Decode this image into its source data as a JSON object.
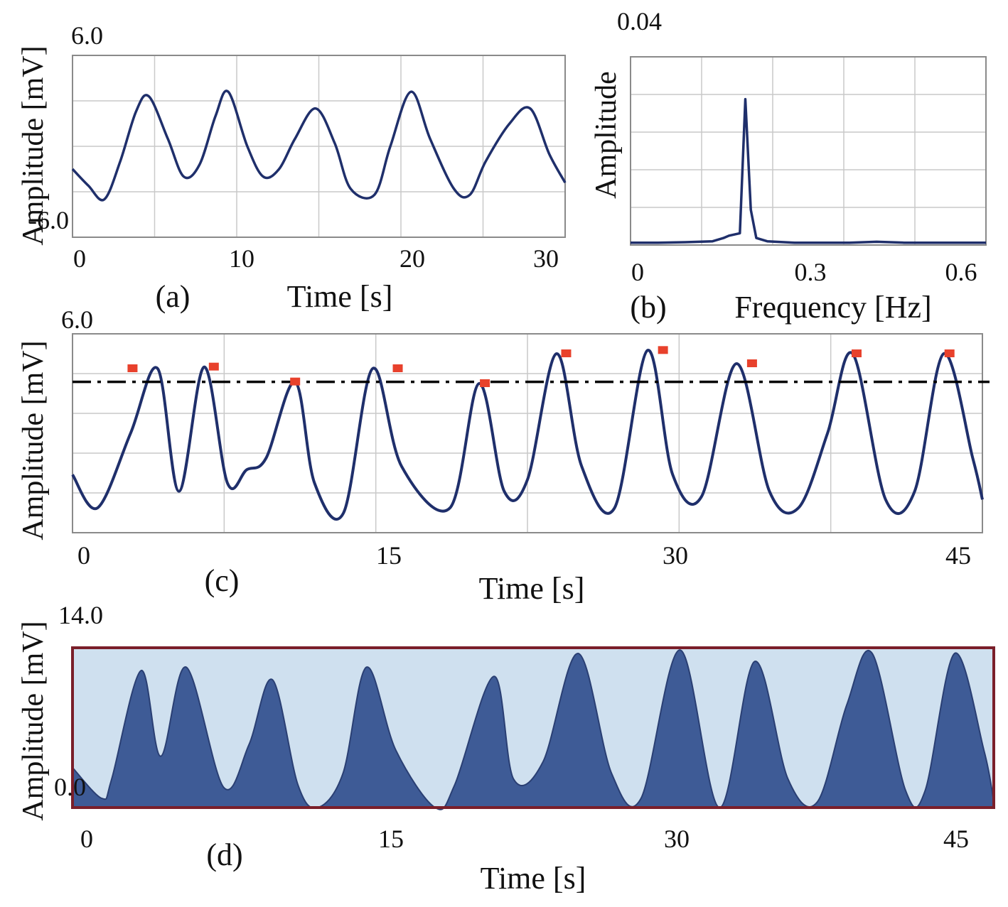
{
  "colors": {
    "signal": "#1f2f6b",
    "marker": "#e8412c",
    "grid": "#c9c9c9",
    "frame": "#8a8a8a",
    "fill": "#3e5b96",
    "fill_bg": "#cfe0ef",
    "box": "#7a1f2a",
    "threshold": "#000000"
  },
  "chart_data": [
    {
      "panel": "(a)",
      "type": "line",
      "xlabel": "Time [s]",
      "ylabel": "Amplitude [mV]",
      "xlim": [
        0,
        31
      ],
      "ylim": [
        -6.0,
        6.0
      ],
      "xticks": [
        "0",
        "10",
        "20",
        "30"
      ],
      "yticks": [
        "6.0",
        "-6.0"
      ],
      "grid": true,
      "x": [
        0,
        1,
        2,
        3,
        4,
        4.8,
        6,
        7,
        8,
        9,
        9.8,
        11,
        12,
        13,
        14,
        15.3,
        16.5,
        17.5,
        19,
        20,
        21.3,
        22.5,
        24,
        25,
        26,
        27.5,
        28.8,
        30,
        31
      ],
      "y": [
        -1.5,
        -2.6,
        -3.5,
        -1.0,
        2.3,
        3.3,
        0.5,
        -2.0,
        -1.2,
        2.0,
        3.6,
        0.0,
        -2.0,
        -1.5,
        0.5,
        2.5,
        0.2,
        -2.8,
        -3.2,
        0.0,
        3.6,
        0.5,
        -2.8,
        -3.2,
        -1.0,
        1.5,
        2.5,
        -0.5,
        -2.4
      ]
    },
    {
      "panel": "(b)",
      "type": "line",
      "xlabel": "Frequency [Hz]",
      "ylabel": "Amplitude",
      "xlim": [
        0,
        0.65
      ],
      "ylim": [
        0,
        0.04
      ],
      "xticks": [
        "0",
        "0.3",
        "0.6"
      ],
      "yticks": [
        "0.04"
      ],
      "grid": true,
      "x": [
        0,
        0.05,
        0.1,
        0.15,
        0.17,
        0.18,
        0.2,
        0.21,
        0.22,
        0.23,
        0.25,
        0.3,
        0.35,
        0.4,
        0.45,
        0.5,
        0.55,
        0.6,
        0.65
      ],
      "y": [
        0.0005,
        0.0005,
        0.0006,
        0.0008,
        0.0015,
        0.002,
        0.0025,
        0.031,
        0.0075,
        0.0015,
        0.0008,
        0.0005,
        0.0005,
        0.0005,
        0.0007,
        0.0005,
        0.0005,
        0.0005,
        0.0005
      ]
    },
    {
      "panel": "(c)",
      "type": "line",
      "xlabel": "Time [s]",
      "ylabel": "Amplitude [mV]",
      "xlim": [
        0,
        47
      ],
      "ylim": [
        -6.0,
        6.0
      ],
      "xticks": [
        "0",
        "15",
        "30",
        "45"
      ],
      "yticks": [
        "6.0"
      ],
      "grid": true,
      "threshold": 3.1,
      "x": [
        0,
        1.3,
        3,
        4.4,
        5.5,
        6.8,
        8,
        9,
        10,
        11.5,
        12.5,
        14,
        15.5,
        17,
        19.5,
        21,
        22.3,
        23.5,
        25,
        26.3,
        28,
        29.7,
        31,
        32.5,
        34.3,
        36,
        37.5,
        39,
        40.3,
        42,
        43.5,
        45,
        46.5,
        47
      ],
      "y": [
        -2.5,
        -4.5,
        0.0,
        3.9,
        -3.5,
        4.0,
        -3.0,
        -2.2,
        -1.5,
        3.1,
        -3.0,
        -4.8,
        3.9,
        -2.0,
        -4.5,
        3.0,
        -3.5,
        -2.8,
        4.8,
        -2.0,
        -4.5,
        5.0,
        -2.5,
        -3.8,
        4.2,
        -3.5,
        -4.5,
        0.0,
        4.8,
        -4.0,
        -3.5,
        4.8,
        -1.5,
        -4.0
      ],
      "peaks": {
        "x": [
          3.1,
          7.3,
          11.5,
          16.8,
          21.3,
          25.5,
          30.5,
          35.1,
          40.5,
          45.3
        ],
        "y": [
          3.9,
          4.0,
          3.1,
          3.9,
          3.0,
          4.8,
          5.0,
          4.2,
          4.8,
          4.8
        ]
      }
    },
    {
      "panel": "(d)",
      "type": "area",
      "xlabel": "Time [s]",
      "ylabel": "Amplitude [mV]",
      "xlim": [
        0,
        47
      ],
      "ylim": [
        0,
        14.0
      ],
      "xticks": [
        "0",
        "15",
        "30",
        "45"
      ],
      "yticks": [
        "14.0",
        "0.0"
      ],
      "grid": false,
      "x": [
        0,
        1.5,
        2,
        3.5,
        4.5,
        5.8,
        7.7,
        9,
        10.2,
        11.5,
        12.5,
        13.8,
        15,
        16.5,
        18.5,
        19.5,
        21.5,
        22.5,
        24,
        25.8,
        27.5,
        29,
        31,
        33,
        34.8,
        36.5,
        38,
        39.5,
        40.8,
        42.5,
        43.5,
        45,
        46.5,
        47
      ],
      "y": [
        3.5,
        0.8,
        2.5,
        12.0,
        4.5,
        12.3,
        1.8,
        5.5,
        11.2,
        2.0,
        0.0,
        3.0,
        12.3,
        5.0,
        0.0,
        2.0,
        11.5,
        2.5,
        4.0,
        13.5,
        3.0,
        0.8,
        13.8,
        0.0,
        12.8,
        2.5,
        0.5,
        9.0,
        13.5,
        1.5,
        1.5,
        13.5,
        5.0,
        0.5
      ]
    }
  ]
}
